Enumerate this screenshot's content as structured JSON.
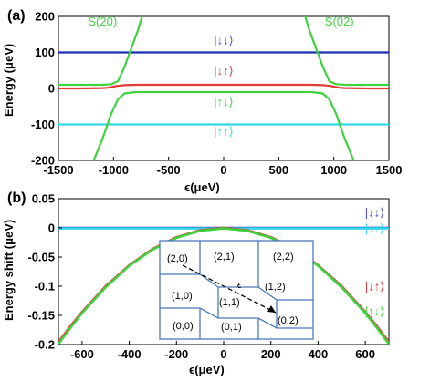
{
  "chart_data": [
    {
      "panel_label": "(a)",
      "type": "line",
      "xlabel": "ϵ(μeV)",
      "ylabel": "Energy (μeV)",
      "xlim": [
        -1500,
        1500
      ],
      "ylim": [
        -200,
        200
      ],
      "xticks": [
        -1500,
        -1000,
        -500,
        0,
        500,
        1000,
        1500
      ],
      "yticks": [
        -200,
        -100,
        0,
        100,
        200
      ],
      "series": [
        {
          "name": "|↓↓⟩",
          "color": "#1a2fb0",
          "points": [
            [
              -1500,
              100
            ],
            [
              1500,
              100
            ]
          ]
        },
        {
          "name": "|↑↑⟩",
          "color": "#33d6e8",
          "points": [
            [
              -1500,
              -100
            ],
            [
              1500,
              -100
            ]
          ]
        },
        {
          "name": "|↓↑⟩",
          "color": "#e33a3a",
          "points": [
            [
              -1500,
              0
            ],
            [
              -1300,
              0
            ],
            [
              -1100,
              1
            ],
            [
              -1050,
              2
            ],
            [
              -1000,
              5
            ],
            [
              -970,
              7
            ],
            [
              -900,
              9
            ],
            [
              -800,
              10
            ],
            [
              0,
              10
            ],
            [
              800,
              10
            ],
            [
              900,
              9
            ],
            [
              970,
              7
            ],
            [
              1000,
              5
            ],
            [
              1050,
              2
            ],
            [
              1100,
              1
            ],
            [
              1300,
              0
            ],
            [
              1500,
              0
            ]
          ]
        },
        {
          "name": "|↑↓⟩",
          "color": "#3ed23e",
          "points": [
            [
              -1500,
              10
            ],
            [
              -1100,
              10
            ],
            [
              -1020,
              12
            ],
            [
              -960,
              20
            ],
            [
              -900,
              60
            ],
            [
              -840,
              110
            ],
            [
              -780,
              160
            ],
            [
              -740,
              200
            ]
          ]
        },
        {
          "name": "|↑↓⟩",
          "color": "#3ed23e",
          "points": [
            [
              1500,
              10
            ],
            [
              1100,
              10
            ],
            [
              1020,
              12
            ],
            [
              960,
              20
            ],
            [
              900,
              60
            ],
            [
              840,
              110
            ],
            [
              780,
              160
            ],
            [
              740,
              200
            ]
          ]
        },
        {
          "name": "|↑↓⟩",
          "color": "#3ed23e",
          "points": [
            [
              -1180,
              -200
            ],
            [
              -1100,
              -140
            ],
            [
              -1020,
              -70
            ],
            [
              -960,
              -30
            ],
            [
              -900,
              -14
            ],
            [
              -800,
              -10
            ],
            [
              0,
              -10
            ],
            [
              800,
              -10
            ],
            [
              900,
              -14
            ],
            [
              960,
              -30
            ],
            [
              1020,
              -70
            ],
            [
              1100,
              -140
            ],
            [
              1180,
              -200
            ]
          ]
        }
      ],
      "annotations": [
        {
          "text": "S(20)",
          "x": -1100,
          "y": 175,
          "color": "#3ed23e"
        },
        {
          "text": "S(02)",
          "x": 1050,
          "y": 175,
          "color": "#3ed23e"
        },
        {
          "text": "|↓↓⟩",
          "x": 0,
          "y": 123,
          "color": "#4b4bd8"
        },
        {
          "text": "|↓↑⟩",
          "x": 0,
          "y": 38,
          "color": "#e33a3a"
        },
        {
          "text": "|↑↓⟩",
          "x": 0,
          "y": -48,
          "color": "#3ed23e"
        },
        {
          "text": "|↑↑⟩",
          "x": 0,
          "y": -130,
          "color": "#33d6e8"
        }
      ]
    },
    {
      "panel_label": "(b)",
      "type": "line",
      "xlabel": "ϵ(μeV)",
      "ylabel": "Energy shift (μeV)",
      "xlim": [
        -700,
        700
      ],
      "ylim": [
        -0.2,
        0.05
      ],
      "xticks": [
        -600,
        -400,
        -200,
        0,
        200,
        400,
        600
      ],
      "yticks": [
        0.05,
        0,
        -0.05,
        -0.1,
        -0.15,
        -0.2
      ],
      "series": [
        {
          "name": "|↓↓⟩",
          "color": "#1a2fb0",
          "points": [
            [
              -700,
              0.0
            ],
            [
              700,
              0.0
            ]
          ]
        },
        {
          "name": "|↑↑⟩",
          "color": "#33d6e8",
          "points": [
            [
              -700,
              -0.001
            ],
            [
              700,
              -0.001
            ]
          ]
        },
        {
          "name": "|↓↑⟩",
          "color": "#e33a3a",
          "points": [
            [
              -700,
              -0.196
            ],
            [
              -650,
              -0.169
            ],
            [
              -600,
              -0.144
            ],
            [
              -500,
              -0.1
            ],
            [
              -400,
              -0.064
            ],
            [
              -300,
              -0.036
            ],
            [
              -200,
              -0.016
            ],
            [
              -100,
              -0.004
            ],
            [
              0,
              0
            ],
            [
              100,
              -0.004
            ],
            [
              200,
              -0.016
            ],
            [
              300,
              -0.036
            ],
            [
              400,
              -0.064
            ],
            [
              500,
              -0.1
            ],
            [
              600,
              -0.144
            ],
            [
              650,
              -0.169
            ],
            [
              700,
              -0.196
            ]
          ]
        },
        {
          "name": "|↑↓⟩",
          "color": "#3ed23e",
          "points": [
            [
              -700,
              -0.199
            ],
            [
              -650,
              -0.172
            ],
            [
              -600,
              -0.146
            ],
            [
              -500,
              -0.102
            ],
            [
              -400,
              -0.065
            ],
            [
              -300,
              -0.037
            ],
            [
              -200,
              -0.017
            ],
            [
              -100,
              -0.005
            ],
            [
              0,
              -0.001
            ],
            [
              100,
              -0.005
            ],
            [
              200,
              -0.017
            ],
            [
              300,
              -0.037
            ],
            [
              400,
              -0.065
            ],
            [
              500,
              -0.102
            ],
            [
              600,
              -0.146
            ],
            [
              650,
              -0.172
            ],
            [
              700,
              -0.199
            ]
          ]
        }
      ],
      "annotations": [
        {
          "text": "|↓↓⟩",
          "x": 640,
          "y": 0.0195,
          "color": "#4b4bd8"
        },
        {
          "text": "|↑↑⟩",
          "x": 640,
          "y": -0.008,
          "color": "#33d6e8"
        },
        {
          "text": "|↓↑⟩",
          "x": 640,
          "y": -0.107,
          "color": "#e33a3a"
        },
        {
          "text": "|↑↓⟩",
          "x": 640,
          "y": -0.15,
          "color": "#3ed23e"
        }
      ],
      "inset": {
        "cell_labels": [
          "(2,0)",
          "(2,1)",
          "(2,2)",
          "(1,0)",
          "(1,1)",
          "(1,2)",
          "(0,0)",
          "(0,1)",
          "(0,2)"
        ],
        "arrow_label": "ϵ",
        "line_color": "#4a78b8"
      }
    }
  ]
}
